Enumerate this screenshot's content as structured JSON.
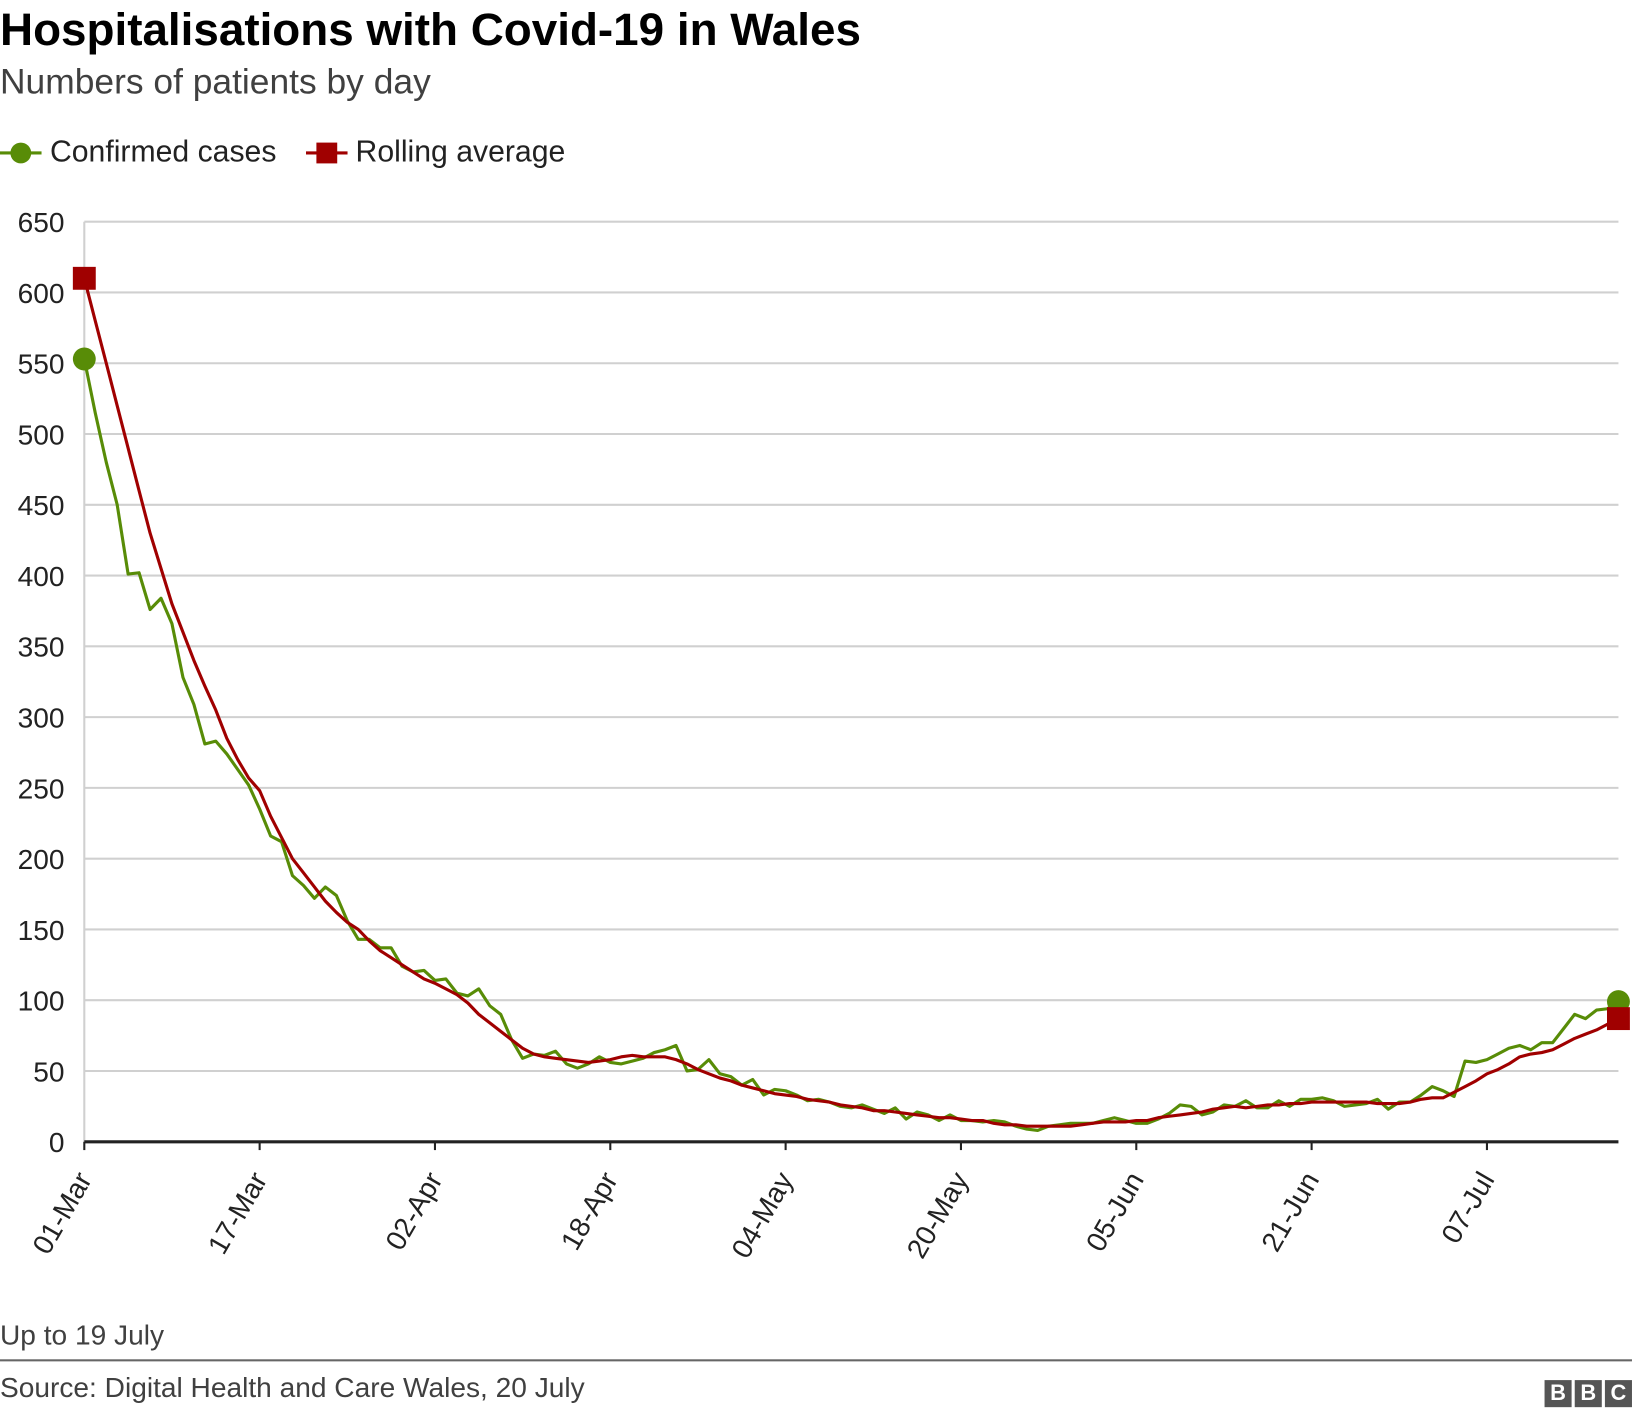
{
  "chart_data": {
    "type": "line",
    "title": "Hospitalisations with Covid-19 in Wales",
    "subtitle": "Numbers of patients by day",
    "xlabel": "",
    "ylabel": "",
    "ylim": [
      0,
      650
    ],
    "yticks": [
      "0",
      "50",
      "100",
      "150",
      "200",
      "250",
      "300",
      "350",
      "400",
      "450",
      "500",
      "550",
      "600",
      "650"
    ],
    "ytick_values": [
      0,
      50,
      100,
      150,
      200,
      250,
      300,
      350,
      400,
      450,
      500,
      550,
      600,
      650
    ],
    "xticks": [
      "01-Mar",
      "17-Mar",
      "02-Apr",
      "18-Apr",
      "04-May",
      "20-May",
      "05-Jun",
      "21-Jun",
      "07-Jul"
    ],
    "xtick_days": [
      0,
      16,
      32,
      48,
      64,
      80,
      96,
      112,
      128
    ],
    "x_start": "01-Mar",
    "x_end": "19-Jul",
    "grid": true,
    "legend_position": "top-left",
    "series": [
      {
        "name": "Confirmed cases",
        "color": "#588c07",
        "marker": "circle",
        "values": [
          553,
          515,
          480,
          450,
          401,
          402,
          376,
          384,
          366,
          328,
          309,
          281,
          283,
          274,
          263,
          252,
          235,
          216,
          212,
          188,
          181,
          172,
          180,
          174,
          156,
          143,
          143,
          137,
          137,
          124,
          120,
          121,
          114,
          115,
          105,
          103,
          108,
          96,
          90,
          72,
          59,
          62,
          61,
          64,
          55,
          52,
          55,
          60,
          56,
          55,
          57,
          59,
          63,
          65,
          68,
          50,
          51,
          58,
          48,
          46,
          40,
          44,
          33,
          37,
          36,
          33,
          29,
          30,
          28,
          25,
          24,
          26,
          23,
          20,
          24,
          16,
          21,
          19,
          15,
          19,
          15,
          15,
          14,
          15,
          14,
          11,
          9,
          8,
          11,
          12,
          13,
          13,
          13,
          15,
          17,
          15,
          13,
          13,
          16,
          20,
          26,
          25,
          19,
          21,
          26,
          25,
          29,
          24,
          24,
          29,
          25,
          30,
          30,
          31,
          29,
          25,
          26,
          27,
          30,
          23,
          28,
          28,
          33,
          39,
          36,
          32,
          57,
          56,
          58,
          62,
          66,
          68,
          65,
          70,
          70,
          80,
          90,
          87,
          93,
          94,
          99
        ]
      },
      {
        "name": "Rolling average",
        "color": "#a00000",
        "marker": "square",
        "values": [
          610,
          580,
          550,
          520,
          490,
          460,
          430,
          405,
          380,
          360,
          340,
          322,
          305,
          285,
          270,
          257,
          248,
          230,
          215,
          200,
          190,
          180,
          170,
          162,
          155,
          150,
          142,
          135,
          130,
          125,
          120,
          115,
          112,
          108,
          104,
          98,
          90,
          84,
          78,
          72,
          66,
          62,
          60,
          59,
          58,
          57,
          56,
          57,
          58,
          60,
          61,
          60,
          60,
          60,
          58,
          55,
          51,
          48,
          45,
          43,
          40,
          38,
          36,
          34,
          33,
          32,
          30,
          29,
          28,
          26,
          25,
          24,
          22,
          22,
          21,
          20,
          19,
          18,
          17,
          17,
          16,
          15,
          15,
          13,
          12,
          12,
          11,
          11,
          11,
          11,
          11,
          12,
          13,
          14,
          14,
          14,
          15,
          15,
          17,
          18,
          19,
          20,
          21,
          23,
          24,
          25,
          24,
          25,
          26,
          26,
          27,
          27,
          28,
          28,
          28,
          28,
          28,
          28,
          27,
          27,
          27,
          28,
          30,
          31,
          31,
          35,
          39,
          43,
          48,
          51,
          55,
          60,
          62,
          63,
          65,
          69,
          73,
          76,
          79,
          83,
          87
        ]
      }
    ]
  },
  "footer": {
    "note": "Up to 19 July",
    "source": "Source: Digital Health and Care Wales, 20 July",
    "logo_letters": [
      "B",
      "B",
      "C"
    ]
  }
}
